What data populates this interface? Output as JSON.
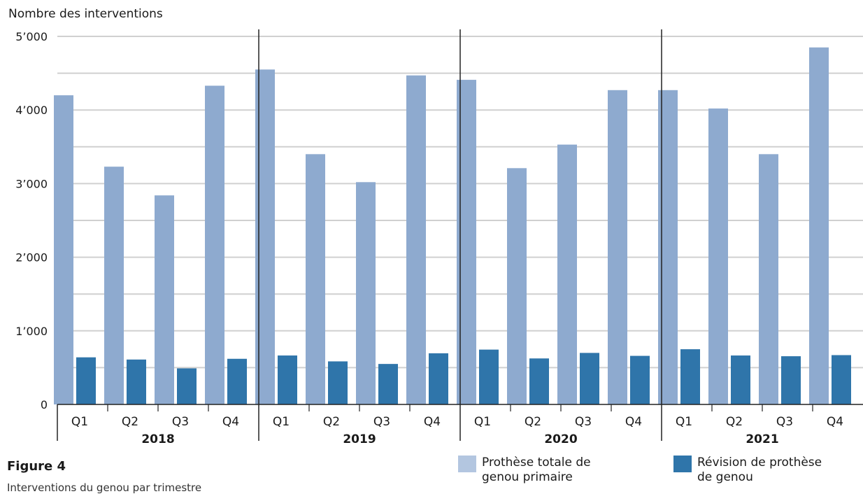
{
  "chart_data": {
    "type": "bar",
    "ylabel": "Nombre des interventions",
    "ylim": [
      0,
      5000
    ],
    "y_ticks": [
      {
        "value": 0,
        "label": "0"
      },
      {
        "value": 1000,
        "label": "1’000"
      },
      {
        "value": 2000,
        "label": "2’000"
      },
      {
        "value": 3000,
        "label": "3’000"
      },
      {
        "value": 4000,
        "label": "4’000"
      },
      {
        "value": 5000,
        "label": "5’000"
      }
    ],
    "grid": true,
    "groups": [
      "2018",
      "2019",
      "2020",
      "2021"
    ],
    "quarters": [
      "Q1",
      "Q2",
      "Q3",
      "Q4"
    ],
    "categories": [
      "2018 Q1",
      "2018 Q2",
      "2018 Q3",
      "2018 Q4",
      "2019 Q1",
      "2019 Q2",
      "2019 Q3",
      "2019 Q4",
      "2020 Q1",
      "2020 Q2",
      "2020 Q3",
      "2020 Q4",
      "2021 Q1",
      "2021 Q2",
      "2021 Q3",
      "2021 Q4"
    ],
    "series": [
      {
        "name": "Prothèse totale de genou primaire",
        "color": "#8eaacf",
        "values": [
          4200,
          3230,
          2840,
          4330,
          4550,
          3400,
          3020,
          4470,
          4410,
          3210,
          3530,
          4270,
          4270,
          4020,
          3400,
          4850
        ]
      },
      {
        "name": "Révision de prothèse de genou",
        "color": "#2f75aa",
        "values": [
          640,
          610,
          490,
          620,
          665,
          585,
          550,
          695,
          745,
          625,
          700,
          660,
          750,
          665,
          655,
          670
        ]
      }
    ],
    "legend_position": "bottom-right"
  },
  "legend": {
    "primary": "Prothèse totale de genou primaire",
    "revision": "Révision de prothèse de genou"
  },
  "figure": {
    "label": "Figure 4",
    "caption": "Interventions du genou par trimestre"
  }
}
